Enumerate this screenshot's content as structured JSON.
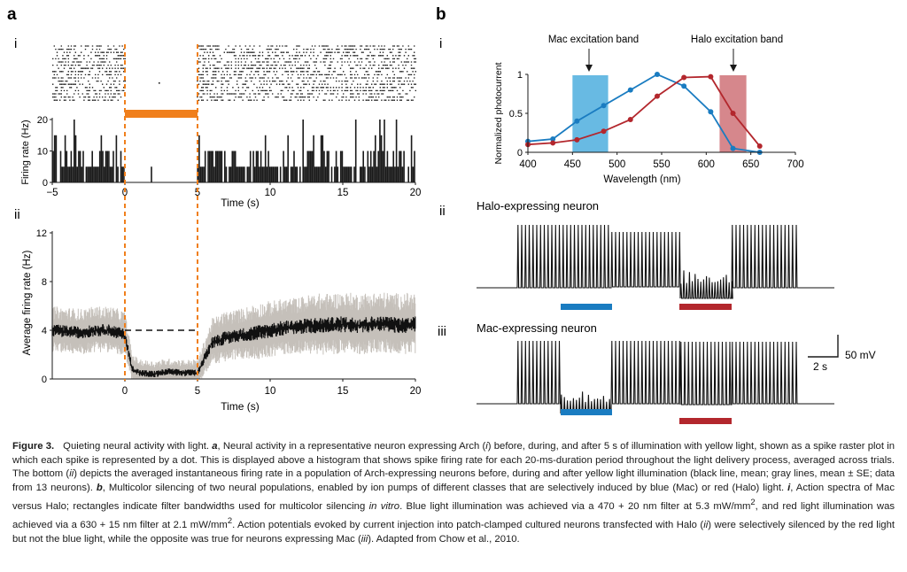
{
  "panel_a": {
    "label": "a",
    "sub_i": "i",
    "sub_ii": "ii",
    "raster_trials": 18
  },
  "panel_b": {
    "label": "b",
    "sub_i": "i",
    "sub_ii": "ii",
    "sub_iii": "iii",
    "halo_title": "Halo-expressing neuron",
    "mac_title": "Mac-expressing neuron",
    "scale_voltage": "50 mV",
    "scale_time": "2 s",
    "mac_band_label": "Mac excitation band",
    "halo_band_label": "Halo excitation band"
  },
  "colors": {
    "orange": "#f07f1c",
    "blue": "#1a7cc1",
    "blue_band": "#58b2e0",
    "red": "#b3272d",
    "red_band": "#d27a7f",
    "gray_band": "#c5c0ba"
  },
  "chart_data": [
    {
      "id": "a-i",
      "type": "bar",
      "xlabel": "Time (s)",
      "ylabel": "Firing rate (Hz)",
      "xlim": [
        -5,
        20
      ],
      "ylim": [
        0,
        20
      ],
      "xticks": [
        -5,
        0,
        5,
        10,
        15,
        20
      ],
      "yticks": [
        0,
        10,
        20
      ],
      "light_on": [
        0,
        5
      ],
      "baseline_rate_hz": 5,
      "light_rate_hz": 0
    },
    {
      "id": "a-ii",
      "type": "line",
      "xlabel": "Time (s)",
      "ylabel": "Average firing rate (Hz)",
      "xlim": [
        -5,
        20
      ],
      "ylim": [
        0,
        12
      ],
      "xticks": [
        0,
        5,
        10,
        15,
        20
      ],
      "yticks": [
        0,
        4,
        8,
        12
      ],
      "light_on": [
        0,
        5
      ],
      "baseline_dashed_hz": 4,
      "mean": {
        "x": [
          -5,
          -4,
          -3,
          -2,
          -1,
          0,
          0.5,
          1,
          2,
          3,
          4,
          5,
          6,
          7,
          8,
          9,
          10,
          11,
          12,
          13,
          14,
          15,
          16,
          17,
          18,
          19,
          20
        ],
        "y": [
          4.0,
          3.9,
          3.8,
          4.0,
          4.0,
          3.6,
          0.8,
          0.5,
          0.4,
          0.6,
          0.5,
          0.5,
          3.0,
          3.4,
          3.6,
          3.8,
          4.0,
          4.2,
          4.3,
          4.4,
          4.4,
          4.5,
          4.4,
          4.5,
          4.5,
          4.4,
          4.5
        ]
      },
      "se": [
        0.9,
        0.9,
        0.9,
        0.9,
        0.9,
        0.9,
        0.6,
        0.5,
        0.5,
        0.5,
        0.5,
        0.5,
        0.9,
        1.0,
        1.0,
        1.1,
        1.1,
        1.1,
        1.1,
        1.2,
        1.2,
        1.2,
        1.2,
        1.2,
        1.2,
        1.2,
        1.2
      ]
    },
    {
      "id": "b-i",
      "type": "line",
      "xlabel": "Wavelength (nm)",
      "ylabel": "Normalized photocurrent",
      "xlim": [
        400,
        700
      ],
      "ylim": [
        0,
        1.0
      ],
      "xticks": [
        400,
        450,
        500,
        550,
        600,
        650,
        700
      ],
      "yticks": [
        0,
        0.5,
        1
      ],
      "bands": [
        {
          "name": "Mac excitation band",
          "range": [
            450,
            490
          ],
          "color": "#58b2e0"
        },
        {
          "name": "Halo excitation band",
          "range": [
            615,
            645
          ],
          "color": "#d27a7f"
        }
      ],
      "series": [
        {
          "name": "Mac",
          "x": [
            400,
            428,
            455,
            485,
            515,
            545,
            575,
            605,
            630,
            660
          ],
          "y": [
            0.14,
            0.17,
            0.4,
            0.6,
            0.8,
            1.0,
            0.85,
            0.52,
            0.05,
            0.0
          ],
          "color": "#1a7cc1"
        },
        {
          "name": "Halo",
          "x": [
            400,
            428,
            455,
            485,
            515,
            545,
            575,
            605,
            630,
            660
          ],
          "y": [
            0.1,
            0.12,
            0.16,
            0.27,
            0.42,
            0.72,
            0.96,
            0.97,
            0.5,
            0.08
          ],
          "color": "#b3272d"
        }
      ]
    }
  ],
  "caption": {
    "label": "Figure 3.",
    "p1": "Quieting neural activity with light. ",
    "a": "a",
    "p2": ", Neural activity in a representative neuron expressing Arch (",
    "i1": "i",
    "p3": ") before, during, and after 5 s of illumination with yellow light, shown as a spike raster plot in which each spike is represented by a dot. This is displayed above a histogram that shows spike firing rate for each 20-ms-duration period throughout the light delivery process, averaged across trials. The bottom (",
    "ii1": "ii",
    "p4": ") depicts the averaged instantaneous firing rate in a population of Arch-expressing neurons before, during and after yellow light illumination (black line, mean; gray lines, mean ± SE; data from 13 neurons). ",
    "b": "b",
    "p5": ", Multicolor silencing of two neural populations, enabled by ion pumps of different classes that are selectively induced by blue (Mac) or red (Halo) light. ",
    "i2": "i",
    "p6": ", Action spectra of Mac versus Halo; rectangles indicate filter bandwidths used for multicolor silencing ",
    "invitro": "in vitro",
    "p7": ". Blue light illumination was achieved via a 470 + 20 nm filter at 5.3 mW/mm",
    "sup1": "2",
    "p8": ", and red light illumination was achieved via a 630 + 15 nm filter at 2.1 mW/mm",
    "sup2": "2",
    "p9": ". Action potentials evoked by current injection into patch-clamped cultured neurons transfected with Halo (",
    "ii2": "ii",
    "p10": ") were selectively silenced by the red light but not the blue light, while the opposite was true for neurons expressing Mac (",
    "iii": "iii",
    "p11": "). Adapted from Chow et al., 2010."
  }
}
